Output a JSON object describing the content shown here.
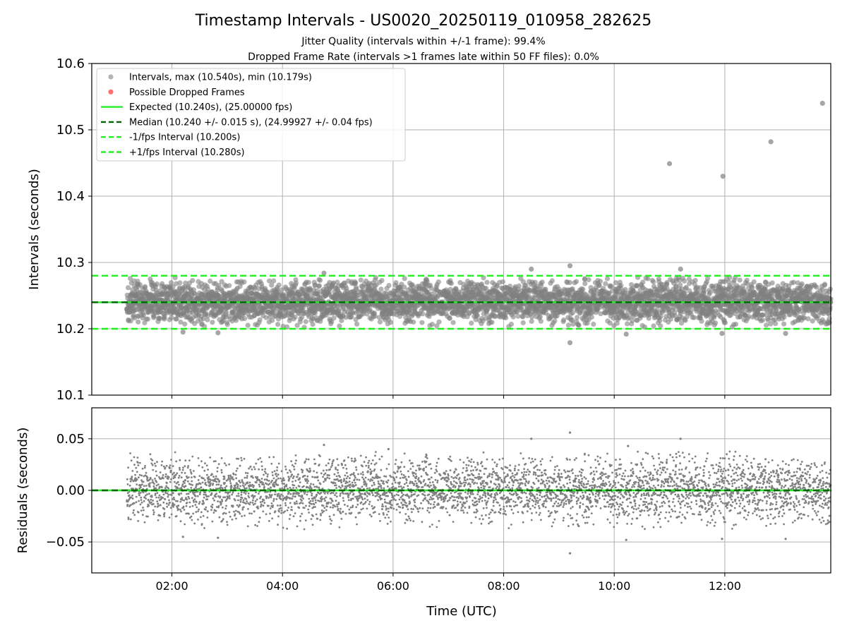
{
  "figure": {
    "title": "Timestamp Intervals - US0020_20250119_010958_282625",
    "subtitle_line1": "Jitter Quality (intervals within +/-1 frame): 99.4%",
    "subtitle_line2": "Dropped Frame Rate (intervals >1 frames late within 50 FF files): 0.0%"
  },
  "colors": {
    "points": "#808080",
    "dropped": "#ff4d4d",
    "expected": "#22ee22",
    "median": "#006400",
    "bounds": "#22ee22",
    "grid": "#b0b0b0"
  },
  "chart_data": [
    {
      "type": "scatter",
      "ylabel": "Intervals (seconds)",
      "xlabel": "",
      "xlim": [
        "00:33",
        "13:55"
      ],
      "ylim": [
        10.1,
        10.6
      ],
      "yticks": [
        "10.1",
        "10.2",
        "10.3",
        "10.4",
        "10.5",
        "10.6"
      ],
      "yticks_values": [
        10.1,
        10.2,
        10.3,
        10.4,
        10.5,
        10.6
      ],
      "xticks": [
        "02:00",
        "04:00",
        "06:00",
        "08:00",
        "10:00",
        "12:00"
      ],
      "grid": true,
      "legend_position": "top-left",
      "legend": [
        {
          "label": "Intervals, max (10.540s), min (10.179s)",
          "style": "marker-gray"
        },
        {
          "label": "Possible Dropped Frames",
          "style": "marker-red"
        },
        {
          "label": "Expected (10.240s), (25.00000 fps)",
          "style": "solid-green"
        },
        {
          "label": "Median (10.240 +/- 0.015 s), (24.99927 +/- 0.04 fps)",
          "style": "dashed-darkgreen"
        },
        {
          "label": "-1/fps Interval (10.200s)",
          "style": "dashed-green"
        },
        {
          "label": "+1/fps Interval (10.280s)",
          "style": "dashed-green"
        }
      ],
      "time_range": [
        "01:11",
        "13:55"
      ],
      "expected": 10.24,
      "median": 10.24,
      "minus_bound": 10.2,
      "plus_bound": 10.28,
      "median_spread": 0.015,
      "max_interval": 10.54,
      "min_interval": 10.179,
      "outliers": [
        {
          "time": "11:00",
          "value": 10.449
        },
        {
          "time": "11:58",
          "value": 10.43
        },
        {
          "time": "12:50",
          "value": 10.482
        },
        {
          "time": "13:46",
          "value": 10.54
        },
        {
          "time": "09:12",
          "value": 10.179
        },
        {
          "time": "09:12",
          "value": 10.295
        },
        {
          "time": "08:30",
          "value": 10.29
        },
        {
          "time": "11:12",
          "value": 10.29
        },
        {
          "time": "04:45",
          "value": 10.284
        },
        {
          "time": "10:13",
          "value": 10.192
        },
        {
          "time": "11:57",
          "value": 10.193
        },
        {
          "time": "13:06",
          "value": 10.193
        },
        {
          "time": "02:50",
          "value": 10.194
        },
        {
          "time": "02:12",
          "value": 10.195
        }
      ],
      "dropped_frames": []
    },
    {
      "type": "scatter",
      "ylabel": "Residuals (seconds)",
      "xlabel": "Time (UTC)",
      "xlim": [
        "00:33",
        "13:55"
      ],
      "ylim": [
        -0.08,
        0.08
      ],
      "yticks": [
        "−0.05",
        "0.00",
        "0.05"
      ],
      "yticks_values": [
        -0.05,
        0.0,
        0.05
      ],
      "xticks": [
        "02:00",
        "04:00",
        "06:00",
        "08:00",
        "10:00",
        "12:00"
      ],
      "grid": true,
      "zero_line": 0.0,
      "residual_spread": 0.015,
      "outliers": [
        {
          "time": "09:12",
          "value": 0.056
        },
        {
          "time": "09:12",
          "value": -0.061
        },
        {
          "time": "08:30",
          "value": 0.05
        },
        {
          "time": "11:12",
          "value": 0.05
        },
        {
          "time": "04:45",
          "value": 0.044
        },
        {
          "time": "10:13",
          "value": -0.048
        },
        {
          "time": "11:57",
          "value": -0.047
        },
        {
          "time": "13:06",
          "value": -0.047
        },
        {
          "time": "02:50",
          "value": -0.046
        },
        {
          "time": "02:12",
          "value": -0.045
        },
        {
          "time": "05:55",
          "value": 0.04
        },
        {
          "time": "10:15",
          "value": 0.043
        }
      ]
    }
  ]
}
